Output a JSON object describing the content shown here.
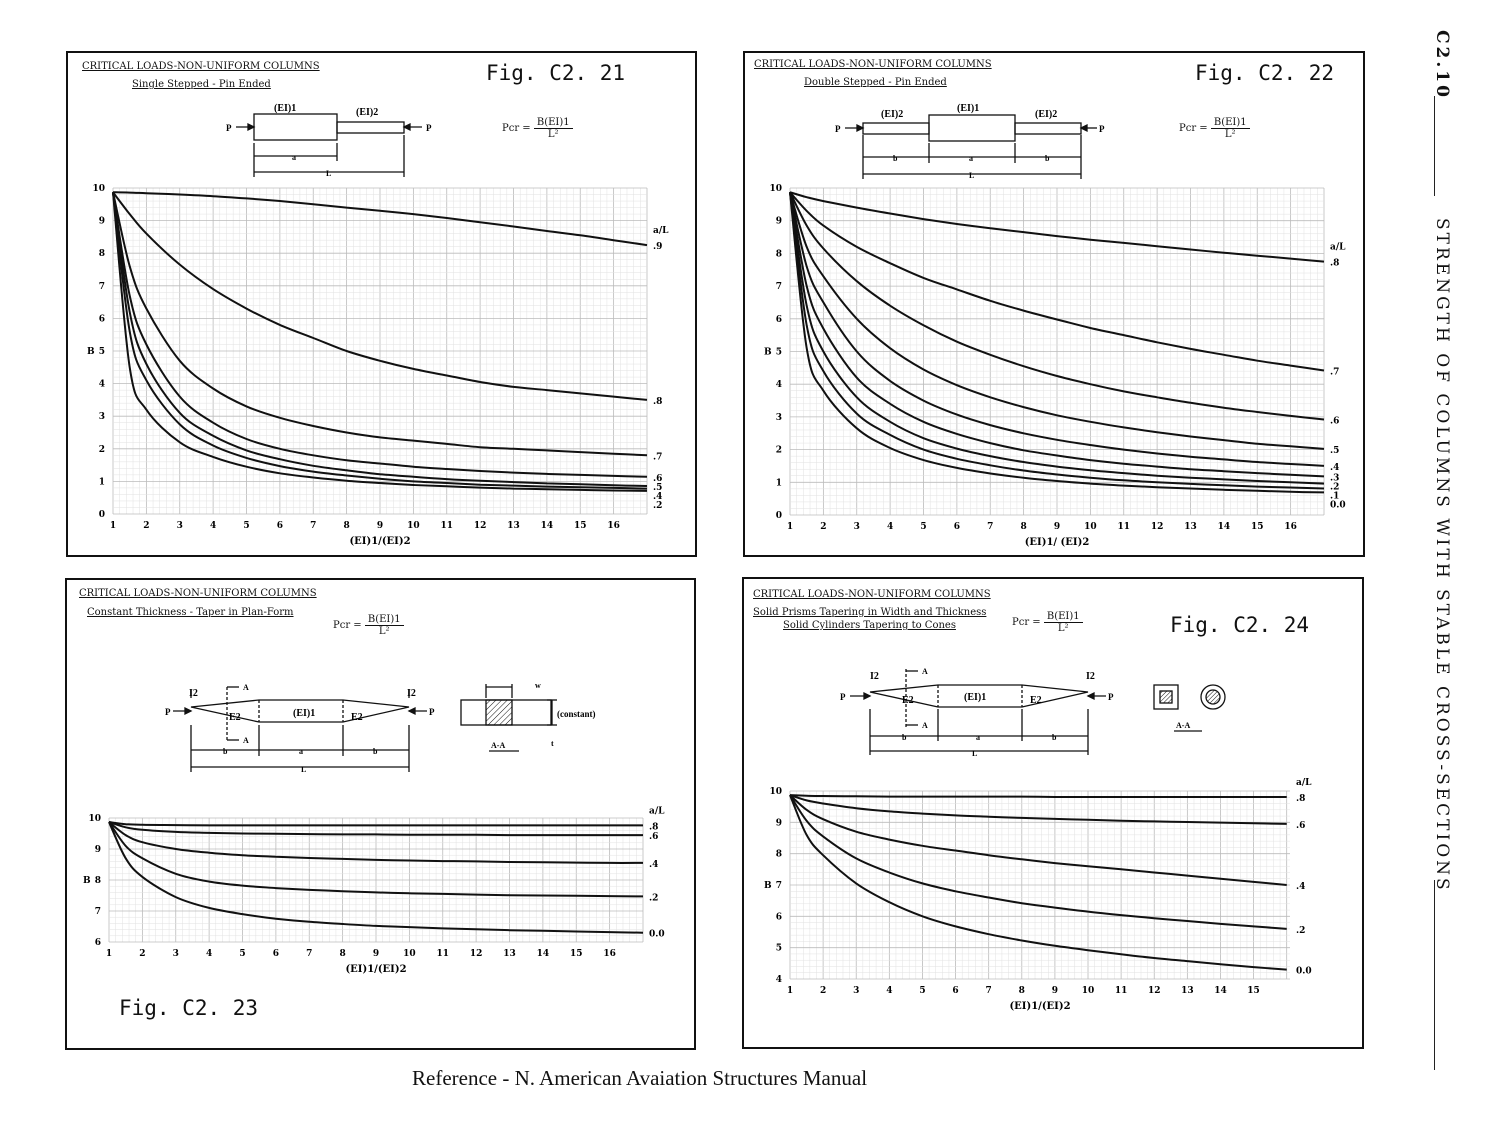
{
  "footer": "Reference - N. American Avaiation Structures Manual",
  "sidebar": {
    "section": "C2.10",
    "heading": "STRENGTH OF COLUMNS WITH STABLE CROSS-SECTIONS"
  },
  "panels": [
    {
      "id": "c221",
      "title": "CRITICAL LOADS-NON-UNIFORM COLUMNS",
      "subtitle": "Single Stepped - Pin Ended",
      "subtitle2": "",
      "fig": "Fig. C2. 21",
      "formula": {
        "lhs": "Pcr =",
        "num": "B(EI)1",
        "den": "L²"
      },
      "diagram": {
        "ei1": "(EI)1",
        "ei2": "(EI)2",
        "p_left": "P",
        "p_right": "P",
        "a": "a",
        "L": "L"
      }
    },
    {
      "id": "c222",
      "title": "CRITICAL LOADS-NON-UNIFORM COLUMNS",
      "subtitle": "Double Stepped - Pin Ended",
      "subtitle2": "",
      "fig": "Fig. C2. 22",
      "formula": {
        "lhs": "Pcr =",
        "num": "B(EI)1",
        "den": "L²"
      },
      "diagram": {
        "ei1": "(EI)1",
        "ei2": "(EI)2",
        "p_left": "P",
        "p_right": "P",
        "a": "a",
        "b": "b",
        "L": "L"
      }
    },
    {
      "id": "c223",
      "title": "CRITICAL LOADS-NON-UNIFORM COLUMNS",
      "subtitle": "Constant Thickness - Taper in Plan-Form",
      "subtitle2": "",
      "fig": "Fig. C2. 23",
      "formula": {
        "lhs": "Pcr =",
        "num": "B(EI)1",
        "den": "L²"
      },
      "diagram": {
        "ei1": "(EI)1",
        "e2": "E2",
        "i2": "I2",
        "p_left": "P",
        "p_right": "P",
        "a": "a",
        "b": "b",
        "L": "L",
        "A": "A",
        "section": "A-A",
        "w": "w",
        "t": "t",
        "constant": "(constant)"
      }
    },
    {
      "id": "c224",
      "title": "CRITICAL LOADS-NON-UNIFORM COLUMNS",
      "subtitle": "Solid Prisms Tapering in Width and Thickness",
      "subtitle2": "Solid Cylinders Tapering to Cones",
      "fig": "Fig. C2. 24",
      "formula": {
        "lhs": "Pcr =",
        "num": "B(EI)1",
        "den": "L²"
      },
      "diagram": {
        "ei1": "(EI)1",
        "e2": "E2",
        "i2": "I2",
        "p_left": "P",
        "p_right": "P",
        "a": "a",
        "b": "b",
        "L": "L",
        "A": "A",
        "section": "A-A"
      }
    }
  ],
  "chart_data": [
    {
      "type": "line",
      "title": "CRITICAL LOADS-NON-UNIFORM COLUMNS",
      "xlabel": "(EI)1/(EI)2",
      "ylabel": "B",
      "legend_title": "a/L",
      "xlim": [
        1,
        17
      ],
      "ylim": [
        0,
        10
      ],
      "xticks": [
        1,
        2,
        3,
        4,
        5,
        6,
        7,
        8,
        9,
        10,
        11,
        12,
        13,
        14,
        15,
        16
      ],
      "yticks": [
        0,
        1,
        2,
        3,
        4,
        5,
        6,
        7,
        8,
        9,
        10
      ],
      "grid": true,
      "x": [
        1,
        1.5,
        2,
        3,
        4,
        5,
        6,
        7,
        8,
        9,
        10,
        11,
        12,
        13,
        14,
        15,
        16,
        17
      ],
      "series": [
        {
          "name": ".9",
          "values": [
            9.87,
            9.86,
            9.84,
            9.8,
            9.75,
            9.68,
            9.6,
            9.5,
            9.4,
            9.3,
            9.2,
            9.08,
            8.95,
            8.82,
            8.68,
            8.55,
            8.4,
            8.25
          ]
        },
        {
          "name": ".8",
          "values": [
            9.87,
            9.2,
            8.6,
            7.65,
            6.9,
            6.3,
            5.8,
            5.4,
            5.0,
            4.7,
            4.45,
            4.25,
            4.05,
            3.9,
            3.8,
            3.7,
            3.6,
            3.5
          ]
        },
        {
          "name": ".7",
          "values": [
            9.87,
            7.6,
            6.3,
            4.7,
            3.85,
            3.3,
            2.95,
            2.7,
            2.5,
            2.35,
            2.25,
            2.15,
            2.05,
            2.0,
            1.95,
            1.9,
            1.85,
            1.8
          ]
        },
        {
          "name": ".6",
          "values": [
            9.87,
            6.7,
            5.2,
            3.6,
            2.8,
            2.3,
            2.0,
            1.8,
            1.65,
            1.55,
            1.45,
            1.38,
            1.32,
            1.27,
            1.23,
            1.2,
            1.17,
            1.14
          ]
        },
        {
          "name": ".5",
          "values": [
            9.87,
            6.2,
            4.6,
            3.1,
            2.4,
            1.95,
            1.68,
            1.48,
            1.34,
            1.22,
            1.14,
            1.07,
            1.02,
            0.98,
            0.94,
            0.91,
            0.88,
            0.86
          ]
        },
        {
          "name": ".4",
          "values": [
            9.87,
            5.6,
            4.1,
            2.75,
            2.1,
            1.72,
            1.47,
            1.3,
            1.18,
            1.08,
            1.0,
            0.95,
            0.9,
            0.87,
            0.84,
            0.82,
            0.8,
            0.78
          ]
        },
        {
          "name": ".2",
          "values": [
            9.87,
            4.5,
            3.2,
            2.2,
            1.75,
            1.45,
            1.25,
            1.12,
            1.02,
            0.95,
            0.89,
            0.85,
            0.81,
            0.78,
            0.76,
            0.74,
            0.72,
            0.71
          ]
        }
      ]
    },
    {
      "type": "line",
      "title": "CRITICAL LOADS-NON-UNIFORM COLUMNS",
      "xlabel": "(EI)1/ (EI)2",
      "ylabel": "B",
      "legend_title": "a/L",
      "xlim": [
        1,
        17
      ],
      "ylim": [
        0,
        10
      ],
      "xticks": [
        1,
        2,
        3,
        4,
        5,
        6,
        7,
        8,
        9,
        10,
        11,
        12,
        13,
        14,
        15,
        16
      ],
      "yticks": [
        0,
        1,
        2,
        3,
        4,
        5,
        6,
        7,
        8,
        9,
        10
      ],
      "grid": true,
      "x": [
        1,
        1.5,
        2,
        3,
        4,
        5,
        6,
        7,
        8,
        9,
        10,
        11,
        12,
        13,
        14,
        15,
        16,
        17
      ],
      "series": [
        {
          "name": ".8",
          "values": [
            9.87,
            9.72,
            9.6,
            9.4,
            9.22,
            9.05,
            8.9,
            8.77,
            8.65,
            8.53,
            8.42,
            8.32,
            8.22,
            8.12,
            8.02,
            7.93,
            7.84,
            7.75
          ]
        },
        {
          "name": ".7",
          "values": [
            9.87,
            9.3,
            8.85,
            8.2,
            7.7,
            7.25,
            6.9,
            6.55,
            6.25,
            5.98,
            5.72,
            5.5,
            5.28,
            5.08,
            4.9,
            4.72,
            4.57,
            4.42
          ]
        },
        {
          "name": ".6",
          "values": [
            9.87,
            8.85,
            8.15,
            7.15,
            6.4,
            5.8,
            5.3,
            4.9,
            4.55,
            4.25,
            4.0,
            3.78,
            3.6,
            3.43,
            3.28,
            3.15,
            3.03,
            2.92
          ]
        },
        {
          "name": ".5",
          "values": [
            9.87,
            8.2,
            7.3,
            6.0,
            5.1,
            4.45,
            3.97,
            3.6,
            3.3,
            3.05,
            2.85,
            2.68,
            2.53,
            2.4,
            2.29,
            2.18,
            2.1,
            2.02
          ]
        },
        {
          "name": ".4",
          "values": [
            9.87,
            7.6,
            6.5,
            5.0,
            4.1,
            3.5,
            3.07,
            2.75,
            2.5,
            2.3,
            2.14,
            2.0,
            1.88,
            1.78,
            1.7,
            1.62,
            1.56,
            1.5
          ]
        },
        {
          "name": ".3",
          "values": [
            9.87,
            7.0,
            5.7,
            4.2,
            3.4,
            2.85,
            2.48,
            2.2,
            1.98,
            1.82,
            1.68,
            1.57,
            1.48,
            1.4,
            1.34,
            1.28,
            1.23,
            1.18
          ]
        },
        {
          "name": ".2",
          "values": [
            9.87,
            6.4,
            5.0,
            3.6,
            2.85,
            2.35,
            2.03,
            1.8,
            1.62,
            1.48,
            1.37,
            1.28,
            1.2,
            1.14,
            1.09,
            1.04,
            1.0,
            0.96
          ]
        },
        {
          "name": ".1",
          "values": [
            9.87,
            5.8,
            4.4,
            3.1,
            2.45,
            2.0,
            1.72,
            1.52,
            1.36,
            1.24,
            1.14,
            1.06,
            1.0,
            0.95,
            0.91,
            0.87,
            0.84,
            0.81
          ]
        },
        {
          "name": "0.0",
          "values": [
            9.87,
            5.1,
            3.8,
            2.65,
            2.05,
            1.68,
            1.44,
            1.27,
            1.14,
            1.04,
            0.96,
            0.9,
            0.85,
            0.81,
            0.77,
            0.74,
            0.71,
            0.69
          ]
        }
      ]
    },
    {
      "type": "line",
      "title": "CRITICAL LOADS-NON-UNIFORM COLUMNS",
      "xlabel": "(EI)1/(EI)2",
      "ylabel": "B",
      "legend_title": "a/L",
      "xlim": [
        1,
        17
      ],
      "ylim": [
        6,
        10
      ],
      "xticks": [
        1,
        2,
        3,
        4,
        5,
        6,
        7,
        8,
        9,
        10,
        11,
        12,
        13,
        14,
        15,
        16
      ],
      "yticks": [
        6,
        7,
        8,
        9,
        10
      ],
      "grid": true,
      "x": [
        1,
        1.5,
        2,
        3,
        4,
        5,
        6,
        7,
        8,
        9,
        10,
        11,
        12,
        13,
        14,
        15,
        16,
        17
      ],
      "series": [
        {
          "name": ".8",
          "values": [
            9.87,
            9.8,
            9.78,
            9.77,
            9.76,
            9.76,
            9.76,
            9.76,
            9.76,
            9.76,
            9.76,
            9.76,
            9.76,
            9.76,
            9.76,
            9.76,
            9.76,
            9.76
          ]
        },
        {
          "name": ".6",
          "values": [
            9.87,
            9.7,
            9.62,
            9.55,
            9.52,
            9.5,
            9.49,
            9.48,
            9.47,
            9.47,
            9.46,
            9.46,
            9.46,
            9.45,
            9.45,
            9.45,
            9.45,
            9.45
          ]
        },
        {
          "name": ".4",
          "values": [
            9.87,
            9.45,
            9.22,
            9.0,
            8.88,
            8.8,
            8.75,
            8.71,
            8.68,
            8.65,
            8.63,
            8.61,
            8.6,
            8.58,
            8.57,
            8.56,
            8.55,
            8.55
          ]
        },
        {
          "name": ".2",
          "values": [
            9.87,
            9.1,
            8.7,
            8.2,
            7.95,
            7.82,
            7.74,
            7.68,
            7.64,
            7.6,
            7.57,
            7.55,
            7.53,
            7.51,
            7.5,
            7.49,
            7.48,
            7.47
          ]
        },
        {
          "name": "0.0",
          "values": [
            9.87,
            8.7,
            8.1,
            7.45,
            7.1,
            6.9,
            6.75,
            6.65,
            6.58,
            6.52,
            6.48,
            6.44,
            6.41,
            6.38,
            6.36,
            6.34,
            6.32,
            6.3
          ]
        }
      ]
    },
    {
      "type": "line",
      "title": "CRITICAL LOADS-NON-UNIFORM COLUMNS",
      "xlabel": "(EI)1/(EI)2",
      "ylabel": "B",
      "legend_title": "a/L",
      "xlim": [
        1,
        16.1
      ],
      "ylim": [
        4,
        10
      ],
      "xticks": [
        1,
        2,
        3,
        4,
        5,
        6,
        7,
        8,
        9,
        10,
        11,
        12,
        13,
        14,
        15
      ],
      "yticks": [
        4,
        5,
        6,
        7,
        8,
        9,
        10
      ],
      "grid": true,
      "x": [
        1,
        1.5,
        2,
        3,
        4,
        5,
        6,
        7,
        8,
        9,
        10,
        11,
        12,
        13,
        14,
        15,
        16
      ],
      "series": [
        {
          "name": ".8",
          "values": [
            9.87,
            9.85,
            9.84,
            9.83,
            9.82,
            9.82,
            9.82,
            9.82,
            9.82,
            9.81,
            9.81,
            9.81,
            9.81,
            9.81,
            9.81,
            9.81,
            9.81
          ]
        },
        {
          "name": ".6",
          "values": [
            9.87,
            9.7,
            9.6,
            9.45,
            9.35,
            9.28,
            9.22,
            9.18,
            9.14,
            9.11,
            9.08,
            9.05,
            9.03,
            9.01,
            8.99,
            8.97,
            8.95
          ]
        },
        {
          "name": ".4",
          "values": [
            9.87,
            9.4,
            9.1,
            8.7,
            8.45,
            8.25,
            8.1,
            7.95,
            7.82,
            7.7,
            7.6,
            7.5,
            7.4,
            7.3,
            7.2,
            7.1,
            7.0
          ]
        },
        {
          "name": ".2",
          "values": [
            9.87,
            9.05,
            8.55,
            7.85,
            7.4,
            7.05,
            6.8,
            6.6,
            6.42,
            6.28,
            6.15,
            6.04,
            5.94,
            5.85,
            5.76,
            5.68,
            5.6
          ]
        },
        {
          "name": "0.0",
          "values": [
            9.87,
            8.6,
            7.95,
            7.05,
            6.45,
            6.0,
            5.68,
            5.43,
            5.23,
            5.06,
            4.92,
            4.79,
            4.67,
            4.57,
            4.47,
            4.38,
            4.3
          ]
        }
      ]
    }
  ]
}
